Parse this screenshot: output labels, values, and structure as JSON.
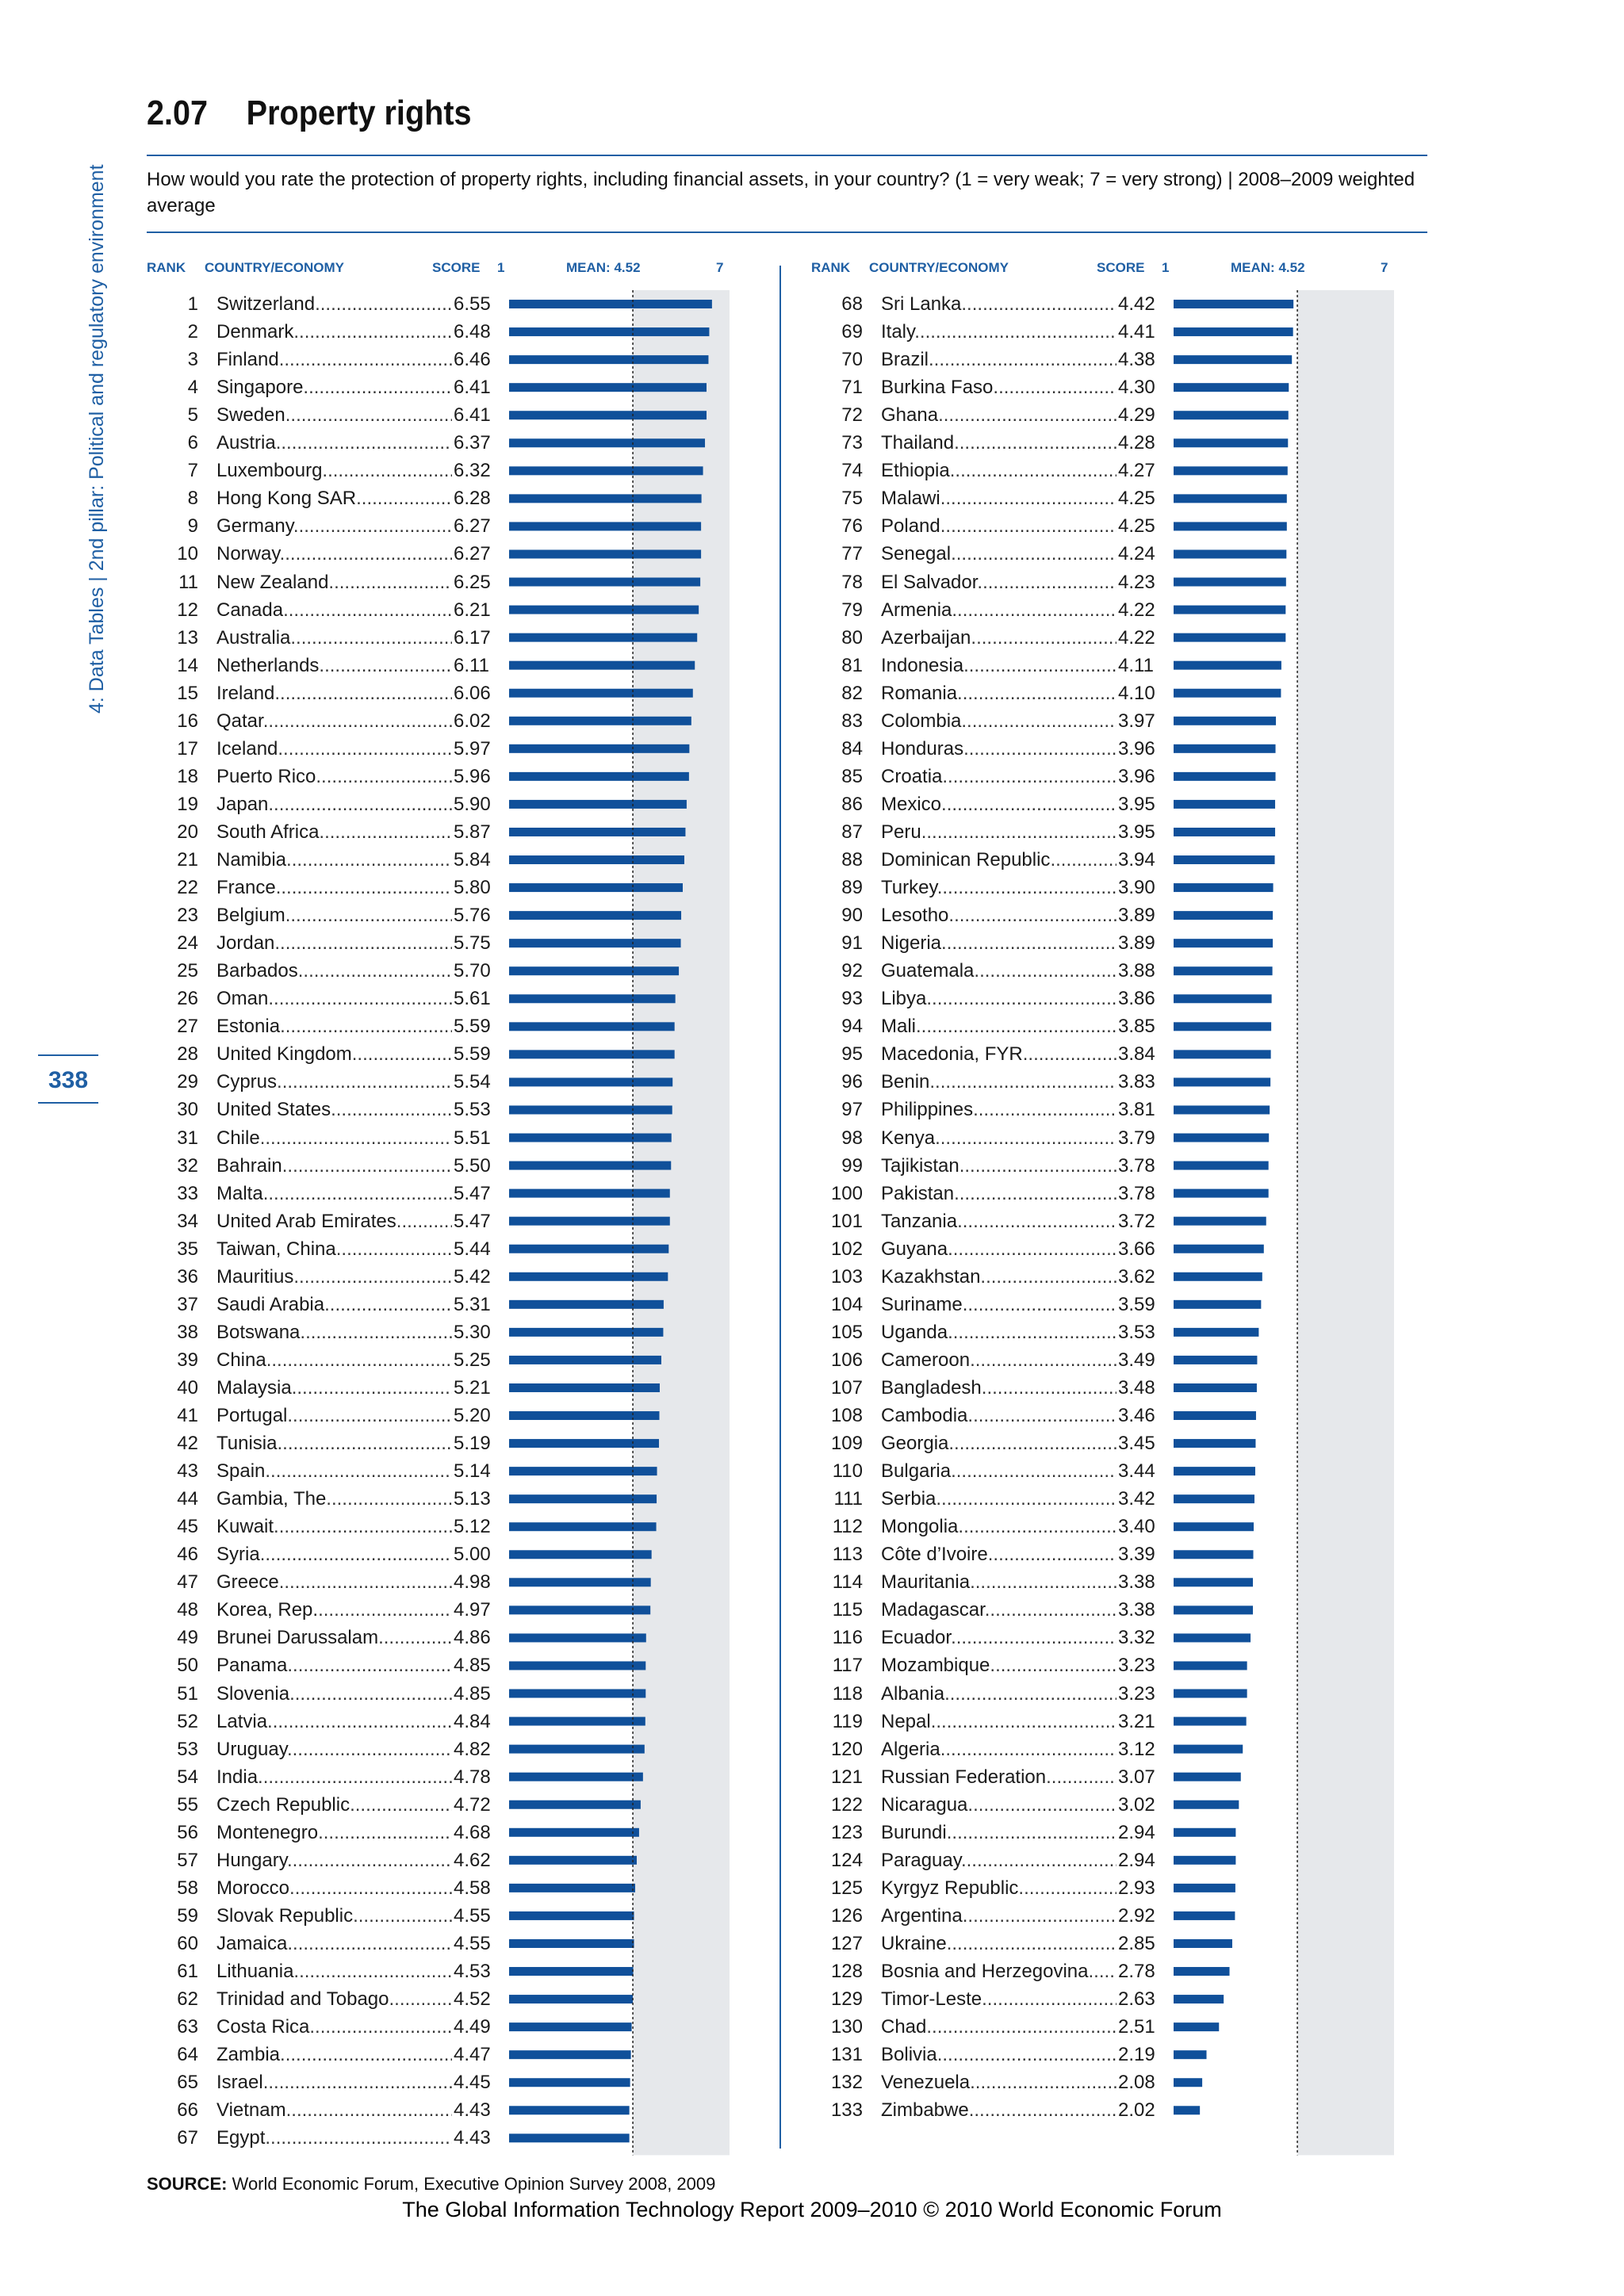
{
  "sidebar": {
    "text": "4: Data Tables  |  2nd pillar: Political and regulatory environment"
  },
  "page_number": "338",
  "section_number": "2.07",
  "title": "Property rights",
  "question": "How would you rate the protection of property rights, including financial assets, in your country? (1 = very weak; 7 = very strong)  |  2008–2009 weighted average",
  "column_headers": {
    "rank": "RANK",
    "country": "COUNTRY/ECONOMY",
    "score": "SCORE",
    "axis_min": "1",
    "mean": "MEAN: 4.52",
    "axis_max": "7"
  },
  "source_label": "SOURCE:",
  "source_text": "World Economic Forum, Executive Opinion Survey 2008, 2009",
  "footer": "The Global Information Technology Report 2009–2010 © 2010 World Economic Forum",
  "colors": {
    "accent": "#1f5fa4",
    "bar": "#10509a",
    "panel": "#e6e8eb"
  },
  "chart_data": {
    "type": "bar",
    "orientation": "horizontal",
    "xlim": [
      1,
      7
    ],
    "mean": 4.52,
    "rows": [
      {
        "rank": "1",
        "country": "Switzerland",
        "score": "6.55"
      },
      {
        "rank": "2",
        "country": "Denmark",
        "score": "6.48"
      },
      {
        "rank": "3",
        "country": "Finland",
        "score": "6.46"
      },
      {
        "rank": "4",
        "country": "Singapore",
        "score": "6.41"
      },
      {
        "rank": "5",
        "country": "Sweden",
        "score": "6.41"
      },
      {
        "rank": "6",
        "country": "Austria",
        "score": "6.37"
      },
      {
        "rank": "7",
        "country": "Luxembourg",
        "score": "6.32"
      },
      {
        "rank": "8",
        "country": "Hong Kong SAR",
        "score": "6.28"
      },
      {
        "rank": "9",
        "country": "Germany",
        "score": "6.27"
      },
      {
        "rank": "10",
        "country": "Norway",
        "score": "6.27"
      },
      {
        "rank": "11",
        "country": "New Zealand",
        "score": "6.25"
      },
      {
        "rank": "12",
        "country": "Canada",
        "score": "6.21"
      },
      {
        "rank": "13",
        "country": "Australia",
        "score": "6.17"
      },
      {
        "rank": "14",
        "country": "Netherlands",
        "score": "6.11"
      },
      {
        "rank": "15",
        "country": "Ireland",
        "score": "6.06"
      },
      {
        "rank": "16",
        "country": "Qatar",
        "score": "6.02"
      },
      {
        "rank": "17",
        "country": "Iceland",
        "score": "5.97"
      },
      {
        "rank": "18",
        "country": "Puerto Rico",
        "score": "5.96"
      },
      {
        "rank": "19",
        "country": "Japan",
        "score": "5.90"
      },
      {
        "rank": "20",
        "country": "South Africa",
        "score": "5.87"
      },
      {
        "rank": "21",
        "country": "Namibia",
        "score": "5.84"
      },
      {
        "rank": "22",
        "country": "France",
        "score": "5.80"
      },
      {
        "rank": "23",
        "country": "Belgium",
        "score": "5.76"
      },
      {
        "rank": "24",
        "country": "Jordan",
        "score": "5.75"
      },
      {
        "rank": "25",
        "country": "Barbados",
        "score": "5.70"
      },
      {
        "rank": "26",
        "country": "Oman",
        "score": "5.61"
      },
      {
        "rank": "27",
        "country": "Estonia",
        "score": "5.59"
      },
      {
        "rank": "28",
        "country": "United Kingdom",
        "score": "5.59"
      },
      {
        "rank": "29",
        "country": "Cyprus",
        "score": "5.54"
      },
      {
        "rank": "30",
        "country": "United States",
        "score": "5.53"
      },
      {
        "rank": "31",
        "country": "Chile",
        "score": "5.51"
      },
      {
        "rank": "32",
        "country": "Bahrain",
        "score": "5.50"
      },
      {
        "rank": "33",
        "country": "Malta",
        "score": "5.47"
      },
      {
        "rank": "34",
        "country": "United Arab Emirates",
        "score": "5.47"
      },
      {
        "rank": "35",
        "country": "Taiwan, China",
        "score": "5.44"
      },
      {
        "rank": "36",
        "country": "Mauritius",
        "score": "5.42"
      },
      {
        "rank": "37",
        "country": "Saudi Arabia",
        "score": "5.31"
      },
      {
        "rank": "38",
        "country": "Botswana",
        "score": "5.30"
      },
      {
        "rank": "39",
        "country": "China",
        "score": "5.25"
      },
      {
        "rank": "40",
        "country": "Malaysia",
        "score": "5.21"
      },
      {
        "rank": "41",
        "country": "Portugal",
        "score": "5.20"
      },
      {
        "rank": "42",
        "country": "Tunisia",
        "score": "5.19"
      },
      {
        "rank": "43",
        "country": "Spain",
        "score": "5.14"
      },
      {
        "rank": "44",
        "country": "Gambia, The",
        "score": "5.13"
      },
      {
        "rank": "45",
        "country": "Kuwait",
        "score": "5.12"
      },
      {
        "rank": "46",
        "country": "Syria",
        "score": "5.00"
      },
      {
        "rank": "47",
        "country": "Greece",
        "score": "4.98"
      },
      {
        "rank": "48",
        "country": "Korea, Rep.",
        "score": "4.97"
      },
      {
        "rank": "49",
        "country": "Brunei Darussalam",
        "score": "4.86"
      },
      {
        "rank": "50",
        "country": "Panama",
        "score": "4.85"
      },
      {
        "rank": "51",
        "country": "Slovenia",
        "score": "4.85"
      },
      {
        "rank": "52",
        "country": "Latvia",
        "score": "4.84"
      },
      {
        "rank": "53",
        "country": "Uruguay",
        "score": "4.82"
      },
      {
        "rank": "54",
        "country": "India",
        "score": "4.78"
      },
      {
        "rank": "55",
        "country": "Czech Republic",
        "score": "4.72"
      },
      {
        "rank": "56",
        "country": "Montenegro",
        "score": "4.68"
      },
      {
        "rank": "57",
        "country": "Hungary",
        "score": "4.62"
      },
      {
        "rank": "58",
        "country": "Morocco",
        "score": "4.58"
      },
      {
        "rank": "59",
        "country": "Slovak Republic",
        "score": "4.55"
      },
      {
        "rank": "60",
        "country": "Jamaica",
        "score": "4.55"
      },
      {
        "rank": "61",
        "country": "Lithuania",
        "score": "4.53"
      },
      {
        "rank": "62",
        "country": "Trinidad and Tobago",
        "score": "4.52"
      },
      {
        "rank": "63",
        "country": "Costa Rica",
        "score": "4.49"
      },
      {
        "rank": "64",
        "country": "Zambia",
        "score": "4.47"
      },
      {
        "rank": "65",
        "country": "Israel",
        "score": "4.45"
      },
      {
        "rank": "66",
        "country": "Vietnam",
        "score": "4.43"
      },
      {
        "rank": "67",
        "country": "Egypt",
        "score": "4.43"
      },
      {
        "rank": "68",
        "country": "Sri Lanka",
        "score": "4.42"
      },
      {
        "rank": "69",
        "country": "Italy",
        "score": "4.41"
      },
      {
        "rank": "70",
        "country": "Brazil",
        "score": "4.38"
      },
      {
        "rank": "71",
        "country": "Burkina Faso",
        "score": "4.30"
      },
      {
        "rank": "72",
        "country": "Ghana",
        "score": "4.29"
      },
      {
        "rank": "73",
        "country": "Thailand",
        "score": "4.28"
      },
      {
        "rank": "74",
        "country": "Ethiopia",
        "score": "4.27"
      },
      {
        "rank": "75",
        "country": "Malawi",
        "score": "4.25"
      },
      {
        "rank": "76",
        "country": "Poland",
        "score": "4.25"
      },
      {
        "rank": "77",
        "country": "Senegal",
        "score": "4.24"
      },
      {
        "rank": "78",
        "country": "El Salvador",
        "score": "4.23"
      },
      {
        "rank": "79",
        "country": "Armenia",
        "score": "4.22"
      },
      {
        "rank": "80",
        "country": "Azerbaijan",
        "score": "4.22"
      },
      {
        "rank": "81",
        "country": "Indonesia",
        "score": "4.11"
      },
      {
        "rank": "82",
        "country": "Romania",
        "score": "4.10"
      },
      {
        "rank": "83",
        "country": "Colombia",
        "score": "3.97"
      },
      {
        "rank": "84",
        "country": "Honduras",
        "score": "3.96"
      },
      {
        "rank": "85",
        "country": "Croatia",
        "score": "3.96"
      },
      {
        "rank": "86",
        "country": "Mexico",
        "score": "3.95"
      },
      {
        "rank": "87",
        "country": "Peru",
        "score": "3.95"
      },
      {
        "rank": "88",
        "country": "Dominican Republic",
        "score": "3.94"
      },
      {
        "rank": "89",
        "country": "Turkey",
        "score": "3.90"
      },
      {
        "rank": "90",
        "country": "Lesotho",
        "score": "3.89"
      },
      {
        "rank": "91",
        "country": "Nigeria",
        "score": "3.89"
      },
      {
        "rank": "92",
        "country": "Guatemala",
        "score": "3.88"
      },
      {
        "rank": "93",
        "country": "Libya",
        "score": "3.86"
      },
      {
        "rank": "94",
        "country": "Mali",
        "score": "3.85"
      },
      {
        "rank": "95",
        "country": "Macedonia, FYR",
        "score": "3.84"
      },
      {
        "rank": "96",
        "country": "Benin",
        "score": "3.83"
      },
      {
        "rank": "97",
        "country": "Philippines",
        "score": "3.81"
      },
      {
        "rank": "98",
        "country": "Kenya",
        "score": "3.79"
      },
      {
        "rank": "99",
        "country": "Tajikistan",
        "score": "3.78"
      },
      {
        "rank": "100",
        "country": "Pakistan",
        "score": "3.78"
      },
      {
        "rank": "101",
        "country": "Tanzania",
        "score": "3.72"
      },
      {
        "rank": "102",
        "country": "Guyana",
        "score": "3.66"
      },
      {
        "rank": "103",
        "country": "Kazakhstan",
        "score": "3.62"
      },
      {
        "rank": "104",
        "country": "Suriname",
        "score": "3.59"
      },
      {
        "rank": "105",
        "country": "Uganda",
        "score": "3.53"
      },
      {
        "rank": "106",
        "country": "Cameroon",
        "score": "3.49"
      },
      {
        "rank": "107",
        "country": "Bangladesh",
        "score": "3.48"
      },
      {
        "rank": "108",
        "country": "Cambodia",
        "score": "3.46"
      },
      {
        "rank": "109",
        "country": "Georgia",
        "score": "3.45"
      },
      {
        "rank": "110",
        "country": "Bulgaria",
        "score": "3.44"
      },
      {
        "rank": "111",
        "country": "Serbia",
        "score": "3.42"
      },
      {
        "rank": "112",
        "country": "Mongolia",
        "score": "3.40"
      },
      {
        "rank": "113",
        "country": "Côte d’Ivoire",
        "score": "3.39"
      },
      {
        "rank": "114",
        "country": "Mauritania",
        "score": "3.38"
      },
      {
        "rank": "115",
        "country": "Madagascar",
        "score": "3.38"
      },
      {
        "rank": "116",
        "country": "Ecuador",
        "score": "3.32"
      },
      {
        "rank": "117",
        "country": "Mozambique",
        "score": "3.23"
      },
      {
        "rank": "118",
        "country": "Albania",
        "score": "3.23"
      },
      {
        "rank": "119",
        "country": "Nepal",
        "score": "3.21"
      },
      {
        "rank": "120",
        "country": "Algeria",
        "score": "3.12"
      },
      {
        "rank": "121",
        "country": "Russian Federation",
        "score": "3.07"
      },
      {
        "rank": "122",
        "country": "Nicaragua",
        "score": "3.02"
      },
      {
        "rank": "123",
        "country": "Burundi",
        "score": "2.94"
      },
      {
        "rank": "124",
        "country": "Paraguay",
        "score": "2.94"
      },
      {
        "rank": "125",
        "country": "Kyrgyz Republic",
        "score": "2.93"
      },
      {
        "rank": "126",
        "country": "Argentina",
        "score": "2.92"
      },
      {
        "rank": "127",
        "country": "Ukraine",
        "score": "2.85"
      },
      {
        "rank": "128",
        "country": "Bosnia and Herzegovina",
        "score": "2.78"
      },
      {
        "rank": "129",
        "country": "Timor-Leste",
        "score": "2.63"
      },
      {
        "rank": "130",
        "country": "Chad",
        "score": "2.51"
      },
      {
        "rank": "131",
        "country": "Bolivia",
        "score": "2.19"
      },
      {
        "rank": "132",
        "country": "Venezuela",
        "score": "2.08"
      },
      {
        "rank": "133",
        "country": "Zimbabwe",
        "score": "2.02"
      }
    ]
  }
}
